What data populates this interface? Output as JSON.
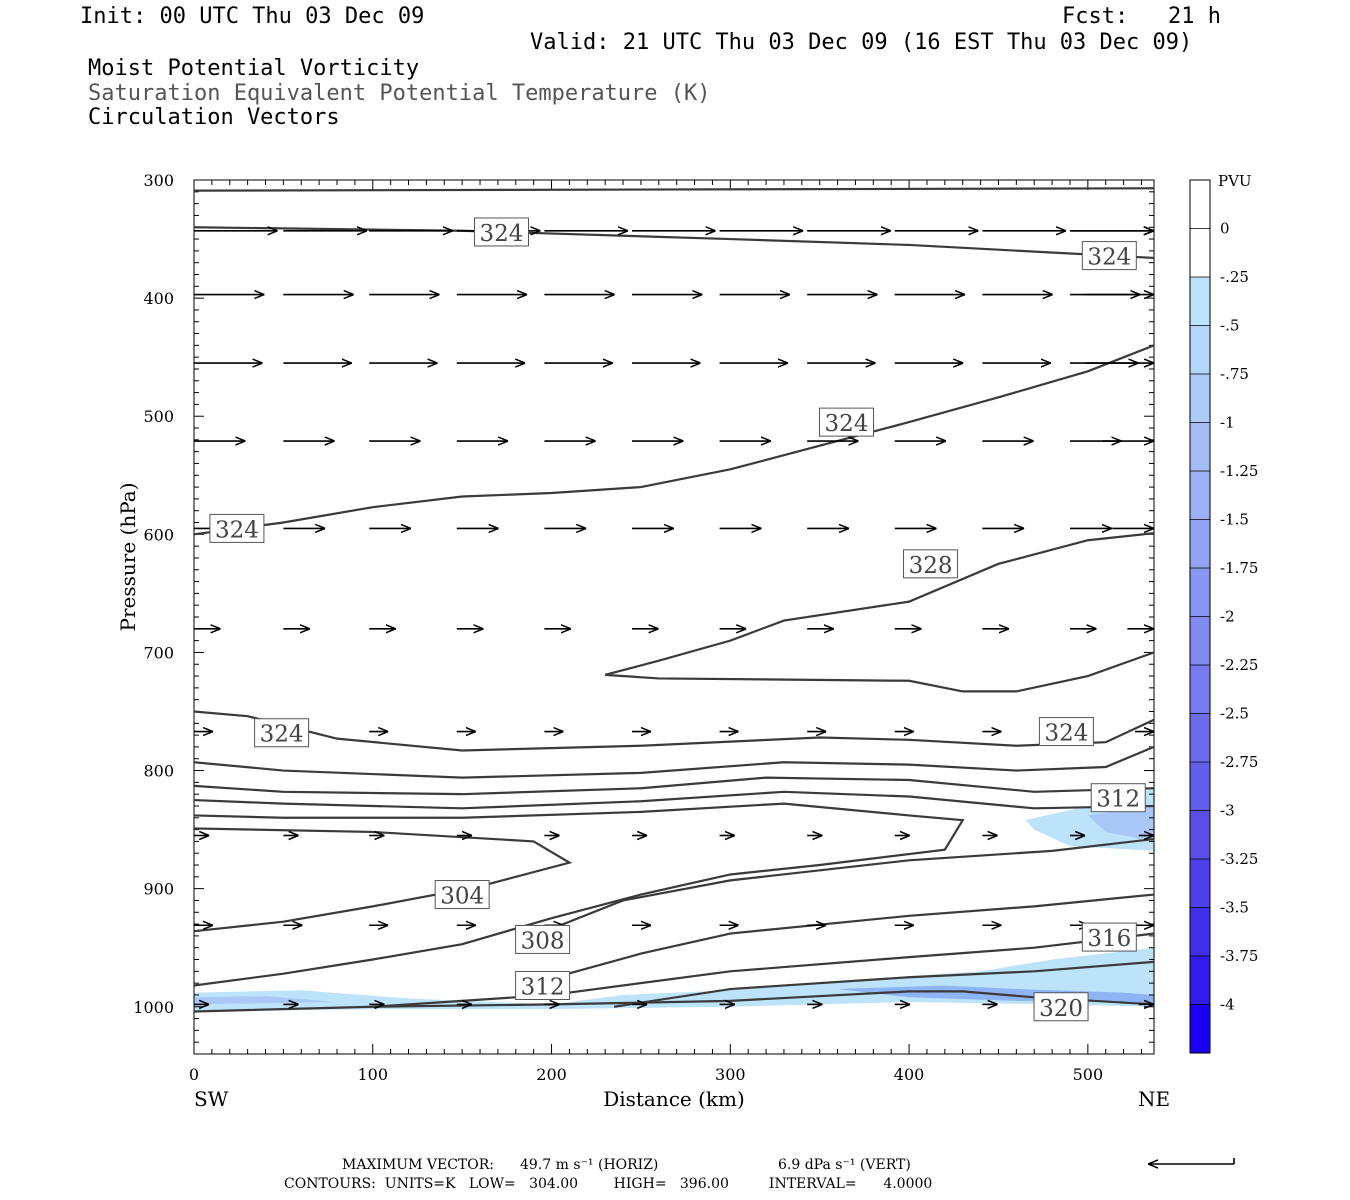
{
  "header": {
    "init": "Init: 00 UTC Thu 03 Dec 09",
    "fcst": "Fcst:   21 h",
    "valid": "Valid: 21 UTC Thu 03 Dec 09 (16 EST Thu 03 Dec 09)",
    "field1": "Moist Potential Vorticity",
    "field2": "Saturation Equivalent Potential Temperature (K)",
    "field3": "Circulation Vectors"
  },
  "footer": {
    "max_vector_label": "MAXIMUM VECTOR:",
    "max_horiz": "49.7 m s⁻¹ (HORIZ)",
    "max_vert": "6.9 dPa s⁻¹ (VERT)",
    "contours": "CONTOURS:  UNITS=K   LOW=   304.00        HIGH=   396.00         INTERVAL=      4.0000"
  },
  "colors": {
    "contour": "#3a3a3a",
    "pv_light": "#bde3fb",
    "pv_mid": "#8fb4f4",
    "pv_dark": "#6f7fe6"
  },
  "chart_data": {
    "type": "cross-section",
    "xlabel": "Distance (km)",
    "ylabel": "Pressure (hPa)",
    "x_left_label": "SW",
    "x_right_label": "NE",
    "xlim": [
      0,
      537
    ],
    "ylim": [
      1040,
      300
    ],
    "x_ticks": [
      0,
      100,
      200,
      300,
      400,
      500
    ],
    "y_ticks": [
      300,
      400,
      500,
      600,
      700,
      800,
      900,
      1000
    ],
    "colorbar": {
      "unit": "PVU",
      "labels": [
        "0",
        "-.25",
        "-.5",
        "-.75",
        "-1",
        "-1.25",
        "-1.5",
        "-1.75",
        "-2",
        "-2.25",
        "-2.5",
        "-2.75",
        "-3",
        "-3.25",
        "-3.5",
        "-3.75",
        "-4"
      ],
      "colors": [
        "#ffffff",
        "#ffffff",
        "#bde3fb",
        "#b5d7fa",
        "#adcaf8",
        "#a4bdf7",
        "#9bb0f5",
        "#93a3f4",
        "#8996f2",
        "#8089f0",
        "#767bef",
        "#6c6ded",
        "#625eeb",
        "#584feb",
        "#4c40ea",
        "#3f2feb",
        "#2f1ced",
        "#1a00f2"
      ]
    },
    "contour_labels": [
      {
        "text": "324",
        "x": 172,
        "y": 344
      },
      {
        "text": "324",
        "x": 512,
        "y": 364
      },
      {
        "text": "324",
        "x": 365,
        "y": 505
      },
      {
        "text": "324",
        "x": 24,
        "y": 595
      },
      {
        "text": "328",
        "x": 412,
        "y": 625
      },
      {
        "text": "324",
        "x": 49,
        "y": 768
      },
      {
        "text": "324",
        "x": 488,
        "y": 767
      },
      {
        "text": "312",
        "x": 517,
        "y": 823
      },
      {
        "text": "304",
        "x": 150,
        "y": 905
      },
      {
        "text": "308",
        "x": 195,
        "y": 943
      },
      {
        "text": "312",
        "x": 195,
        "y": 982
      },
      {
        "text": "316",
        "x": 512,
        "y": 941
      },
      {
        "text": "320",
        "x": 485,
        "y": 1000
      }
    ],
    "contours": [
      [
        [
          0,
          309
        ],
        [
          537,
          307
        ]
      ],
      [
        [
          0,
          340
        ],
        [
          150,
          343
        ],
        [
          300,
          350
        ],
        [
          400,
          355
        ],
        [
          537,
          366
        ]
      ],
      [
        [
          0,
          600
        ],
        [
          50,
          590
        ],
        [
          100,
          577
        ],
        [
          150,
          568
        ],
        [
          200,
          565
        ],
        [
          250,
          560
        ],
        [
          300,
          545
        ],
        [
          350,
          525
        ],
        [
          400,
          505
        ],
        [
          450,
          484
        ],
        [
          500,
          462
        ],
        [
          537,
          440
        ]
      ],
      [
        [
          230,
          719
        ],
        [
          260,
          707
        ],
        [
          300,
          690
        ],
        [
          330,
          673
        ],
        [
          400,
          657
        ],
        [
          450,
          625
        ],
        [
          500,
          605
        ],
        [
          537,
          599
        ]
      ],
      [
        [
          230,
          719
        ],
        [
          260,
          722
        ],
        [
          400,
          724
        ],
        [
          430,
          733
        ],
        [
          460,
          733
        ],
        [
          500,
          720
        ],
        [
          537,
          700
        ]
      ],
      [
        [
          0,
          750
        ],
        [
          30,
          754
        ],
        [
          80,
          773
        ],
        [
          150,
          783
        ],
        [
          250,
          779
        ],
        [
          350,
          772
        ],
        [
          400,
          774
        ],
        [
          460,
          779
        ],
        [
          510,
          776
        ],
        [
          537,
          757
        ]
      ],
      [
        [
          0,
          793
        ],
        [
          50,
          800
        ],
        [
          150,
          806
        ],
        [
          250,
          802
        ],
        [
          330,
          793
        ],
        [
          400,
          795
        ],
        [
          460,
          800
        ],
        [
          510,
          797
        ],
        [
          537,
          780
        ]
      ],
      [
        [
          0,
          813
        ],
        [
          50,
          818
        ],
        [
          150,
          820
        ],
        [
          250,
          815
        ],
        [
          320,
          806
        ],
        [
          400,
          808
        ],
        [
          470,
          818
        ],
        [
          537,
          815
        ]
      ],
      [
        [
          0,
          825
        ],
        [
          50,
          828
        ],
        [
          150,
          832
        ],
        [
          250,
          826
        ],
        [
          330,
          818
        ],
        [
          400,
          822
        ],
        [
          470,
          832
        ],
        [
          537,
          830
        ]
      ],
      [
        [
          0,
          838
        ],
        [
          50,
          840
        ],
        [
          150,
          840
        ],
        [
          250,
          835
        ],
        [
          330,
          828
        ],
        [
          400,
          838
        ],
        [
          430,
          842
        ],
        [
          420,
          867
        ],
        [
          350,
          880
        ],
        [
          300,
          888
        ],
        [
          250,
          905
        ],
        [
          200,
          925
        ],
        [
          150,
          947
        ],
        [
          100,
          960
        ],
        [
          50,
          972
        ],
        [
          0,
          982
        ]
      ],
      [
        [
          0,
          849
        ],
        [
          100,
          852
        ],
        [
          190,
          860
        ],
        [
          210,
          878
        ],
        [
          160,
          898
        ],
        [
          100,
          915
        ],
        [
          50,
          928
        ],
        [
          0,
          936
        ]
      ],
      [
        [
          190,
          940
        ],
        [
          240,
          910
        ],
        [
          300,
          893
        ],
        [
          400,
          876
        ],
        [
          480,
          868
        ],
        [
          537,
          858
        ]
      ],
      [
        [
          190,
          980
        ],
        [
          250,
          955
        ],
        [
          300,
          938
        ],
        [
          400,
          923
        ],
        [
          470,
          915
        ],
        [
          537,
          905
        ]
      ],
      [
        [
          100,
          1000
        ],
        [
          200,
          990
        ],
        [
          300,
          970
        ],
        [
          400,
          958
        ],
        [
          470,
          950
        ],
        [
          537,
          938
        ]
      ],
      [
        [
          235,
          1000
        ],
        [
          300,
          985
        ],
        [
          400,
          975
        ],
        [
          470,
          970
        ],
        [
          537,
          962
        ]
      ],
      [
        [
          0,
          1004
        ],
        [
          100,
          1000
        ],
        [
          200,
          998
        ],
        [
          300,
          995
        ],
        [
          400,
          987
        ],
        [
          430,
          987
        ],
        [
          470,
          992
        ],
        [
          537,
          998
        ]
      ]
    ],
    "vectors": [
      {
        "y": 343,
        "x": [
          0,
          50,
          98,
          147,
          196,
          245,
          294,
          343,
          392,
          441,
          490,
          537
        ],
        "u": [
          44,
          44,
          44,
          44,
          44,
          44,
          44,
          44,
          44,
          44,
          44,
          44
        ],
        "w": [
          0,
          0,
          0,
          0,
          0,
          0,
          0,
          0,
          0,
          0,
          0,
          0
        ]
      },
      {
        "y": 397,
        "x": [
          0,
          50,
          98,
          147,
          196,
          245,
          294,
          343,
          392,
          441,
          490,
          537
        ],
        "u": [
          37,
          37,
          37,
          37,
          37,
          37,
          37,
          37,
          37,
          37,
          37,
          37
        ],
        "w": [
          0,
          0,
          0,
          0,
          0,
          0,
          0,
          0,
          0,
          0,
          0,
          0
        ]
      },
      {
        "y": 455,
        "x": [
          0,
          50,
          98,
          147,
          196,
          245,
          294,
          343,
          392,
          441,
          490,
          537
        ],
        "u": [
          36,
          36,
          36,
          36,
          36,
          36,
          36,
          36,
          36,
          36,
          36,
          36
        ],
        "w": [
          0,
          0,
          0,
          0,
          0,
          0,
          0,
          0,
          0,
          0,
          0,
          0
        ]
      },
      {
        "y": 521,
        "x": [
          0,
          50,
          98,
          147,
          196,
          245,
          294,
          343,
          392,
          441,
          490,
          537
        ],
        "u": [
          27,
          27,
          27,
          27,
          27,
          27,
          27,
          27,
          27,
          27,
          27,
          27
        ],
        "w": [
          0,
          0,
          0,
          0,
          0,
          0,
          0,
          0,
          0,
          0,
          0,
          0
        ]
      },
      {
        "y": 595,
        "x": [
          0,
          50,
          98,
          147,
          196,
          245,
          294,
          343,
          392,
          441,
          490,
          537
        ],
        "u": [
          22,
          22,
          22,
          22,
          22,
          22,
          22,
          22,
          22,
          22,
          22,
          22
        ],
        "w": [
          0,
          0,
          0,
          0,
          0,
          0,
          0,
          0,
          0,
          0,
          0,
          0
        ]
      },
      {
        "y": 680,
        "x": [
          0,
          50,
          98,
          147,
          196,
          245,
          294,
          343,
          392,
          441,
          490,
          537
        ],
        "u": [
          14,
          14,
          14,
          14,
          14,
          14,
          14,
          14,
          14,
          14,
          14,
          14
        ],
        "w": [
          0,
          0,
          0,
          0,
          0,
          0,
          0,
          0,
          0,
          0,
          0,
          0
        ]
      },
      {
        "y": 767,
        "x": [
          0,
          50,
          98,
          147,
          196,
          245,
          294,
          343,
          392,
          441,
          490,
          537
        ],
        "u": [
          10,
          10,
          10,
          10,
          10,
          10,
          10,
          10,
          10,
          10,
          10,
          10
        ],
        "w": [
          0,
          0,
          0,
          0,
          0,
          0,
          0,
          0,
          0,
          0,
          0,
          0
        ]
      },
      {
        "y": 855,
        "x": [
          0,
          50,
          98,
          147,
          196,
          245,
          294,
          343,
          392,
          441,
          490,
          537
        ],
        "u": [
          8,
          8,
          8,
          8,
          8,
          8,
          8,
          8,
          8,
          8,
          8,
          8
        ],
        "w": [
          0,
          0,
          0,
          0,
          0,
          0,
          0,
          0,
          0,
          0,
          0,
          0
        ]
      },
      {
        "y": 931,
        "x": [
          0,
          50,
          98,
          147,
          196,
          245,
          294,
          343,
          392,
          441,
          490,
          537
        ],
        "u": [
          10,
          10,
          10,
          10,
          10,
          10,
          10,
          10,
          10,
          10,
          10,
          10
        ],
        "w": [
          0,
          0,
          0,
          0,
          0,
          0,
          0,
          0,
          0,
          0,
          0,
          0
        ]
      },
      {
        "y": 998,
        "x": [
          0,
          50,
          98,
          147,
          196,
          245,
          294,
          343,
          392,
          441,
          490,
          537
        ],
        "u": [
          8,
          8,
          8,
          8,
          8,
          8,
          8,
          8,
          8,
          8,
          8,
          8
        ],
        "w": [
          0,
          0,
          0,
          0,
          0,
          0,
          0,
          0,
          0,
          0,
          0,
          0
        ]
      }
    ],
    "pv_regions": [
      {
        "level": "-.5",
        "points": [
          [
            0,
            988
          ],
          [
            60,
            986
          ],
          [
            120,
            993
          ],
          [
            200,
            998
          ],
          [
            240,
            990
          ],
          [
            300,
            986
          ],
          [
            350,
            980
          ],
          [
            400,
            974
          ],
          [
            440,
            970
          ],
          [
            480,
            960
          ],
          [
            537,
            950
          ],
          [
            537,
            1000
          ],
          [
            480,
            998
          ],
          [
            400,
            996
          ],
          [
            300,
            1000
          ],
          [
            200,
            1002
          ],
          [
            100,
            1002
          ],
          [
            0,
            1004
          ]
        ]
      },
      {
        "level": "-.75",
        "points": [
          [
            0,
            992
          ],
          [
            40,
            991
          ],
          [
            80,
            996
          ],
          [
            0,
            998
          ]
        ]
      },
      {
        "level": "-1.0",
        "points": [
          [
            360,
            985
          ],
          [
            420,
            982
          ],
          [
            460,
            985
          ],
          [
            520,
            988
          ],
          [
            537,
            990
          ],
          [
            537,
            997
          ],
          [
            460,
            995
          ],
          [
            400,
            992
          ]
        ]
      },
      {
        "level": "-.5",
        "points": [
          [
            465,
            842
          ],
          [
            500,
            830
          ],
          [
            537,
            815
          ],
          [
            537,
            868
          ],
          [
            490,
            864
          ],
          [
            470,
            850
          ]
        ]
      },
      {
        "level": "-.75",
        "points": [
          [
            500,
            838
          ],
          [
            537,
            830
          ],
          [
            537,
            860
          ],
          [
            510,
            852
          ]
        ]
      }
    ]
  }
}
